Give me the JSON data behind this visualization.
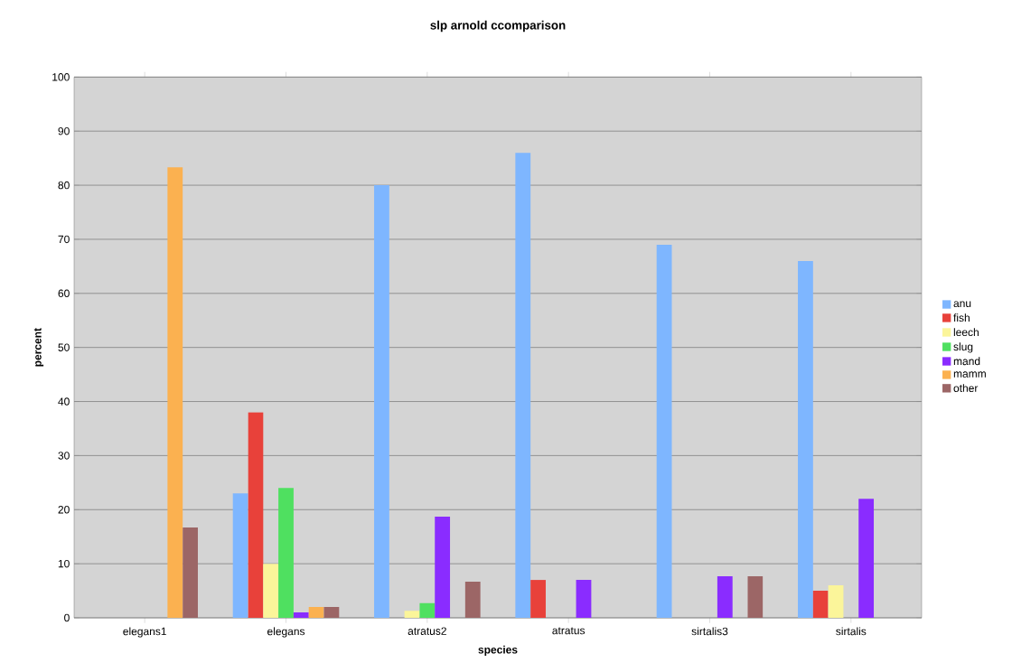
{
  "chart_data": {
    "type": "bar",
    "title": "slp arnold ccomparison",
    "xlabel": "species",
    "ylabel": "percent",
    "categories": [
      "elegans1",
      "elegans",
      "atratus2",
      "atratus",
      "sirtalis3",
      "sirtalis"
    ],
    "series": [
      {
        "name": "anu",
        "color": "#7eb6ff",
        "values": [
          null,
          23,
          80,
          86,
          69,
          66
        ]
      },
      {
        "name": "fish",
        "color": "#e8413a",
        "values": [
          null,
          38,
          null,
          7,
          null,
          5
        ]
      },
      {
        "name": "leech",
        "color": "#fbf59a",
        "values": [
          null,
          10,
          1.3,
          null,
          null,
          6
        ]
      },
      {
        "name": "slug",
        "color": "#4fe060",
        "values": [
          null,
          24,
          2.7,
          null,
          null,
          null
        ]
      },
      {
        "name": "mand",
        "color": "#8a2cff",
        "values": [
          null,
          1,
          18.7,
          7,
          7.7,
          22
        ]
      },
      {
        "name": "mamm",
        "color": "#fbb150",
        "values": [
          83.3,
          2,
          null,
          null,
          null,
          null
        ]
      },
      {
        "name": "other",
        "color": "#9c6666",
        "values": [
          16.7,
          2,
          6.7,
          null,
          7.7,
          null
        ]
      }
    ],
    "ylim": [
      0,
      100
    ],
    "yticks": [
      0,
      10,
      20,
      30,
      40,
      50,
      60,
      70,
      80,
      90,
      100
    ],
    "grid": "y",
    "legend": "right"
  }
}
